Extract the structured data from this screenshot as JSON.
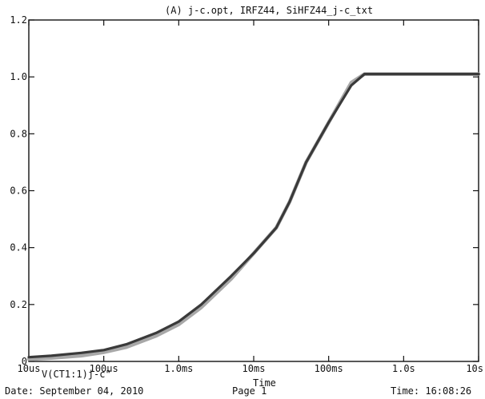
{
  "chart_data": {
    "type": "line",
    "title": "(A) j-c.opt, IRFZ44, SiHFZ44_j-c_txt",
    "xlabel": "Time",
    "ylabel": "",
    "x_scale": "log",
    "xlim_seconds": [
      1e-05,
      10
    ],
    "ylim": [
      0,
      1.2
    ],
    "x_ticks": [
      {
        "value": 1e-05,
        "label": "10us"
      },
      {
        "value": 0.0001,
        "label": "100us"
      },
      {
        "value": 0.001,
        "label": "1.0ms"
      },
      {
        "value": 0.01,
        "label": "10ms"
      },
      {
        "value": 0.1,
        "label": "100ms"
      },
      {
        "value": 1,
        "label": "1.0s"
      },
      {
        "value": 10,
        "label": "10s"
      }
    ],
    "y_ticks": [
      {
        "value": 0,
        "label": "0"
      },
      {
        "value": 0.2,
        "label": "0.2"
      },
      {
        "value": 0.4,
        "label": "0.4"
      },
      {
        "value": 0.6,
        "label": "0.6"
      },
      {
        "value": 0.8,
        "label": "0.8"
      },
      {
        "value": 1.0,
        "label": "1.0"
      },
      {
        "value": 1.2,
        "label": "1.2"
      }
    ],
    "grid": false,
    "series": [
      {
        "name": "V(CT1:1)j-c\"",
        "color": "#3a3a3a",
        "x": [
          1e-05,
          2e-05,
          5e-05,
          0.0001,
          0.0002,
          0.0005,
          0.001,
          0.002,
          0.005,
          0.01,
          0.02,
          0.03,
          0.05,
          0.1,
          0.2,
          0.3,
          0.5,
          1,
          2,
          10
        ],
        "y": [
          0.015,
          0.02,
          0.03,
          0.04,
          0.06,
          0.1,
          0.14,
          0.2,
          0.3,
          0.38,
          0.47,
          0.56,
          0.7,
          0.84,
          0.97,
          1.01,
          1.01,
          1.01,
          1.01,
          1.01
        ]
      },
      {
        "name": "",
        "color": "#a8a8a8",
        "x": [
          1e-05,
          2e-05,
          5e-05,
          0.0001,
          0.0002,
          0.0005,
          0.001,
          0.002,
          0.005,
          0.01,
          0.02,
          0.03,
          0.05,
          0.1,
          0.2,
          0.3,
          0.5,
          1,
          2,
          10
        ],
        "y": [
          0.008,
          0.012,
          0.02,
          0.032,
          0.05,
          0.09,
          0.13,
          0.19,
          0.29,
          0.38,
          0.47,
          0.56,
          0.7,
          0.84,
          0.98,
          1.01,
          1.01,
          1.01,
          1.01,
          1.01
        ]
      }
    ]
  },
  "footer": {
    "date": "Date: September 04, 2010",
    "page": "Page 1",
    "time": "Time: 16:08:26"
  }
}
